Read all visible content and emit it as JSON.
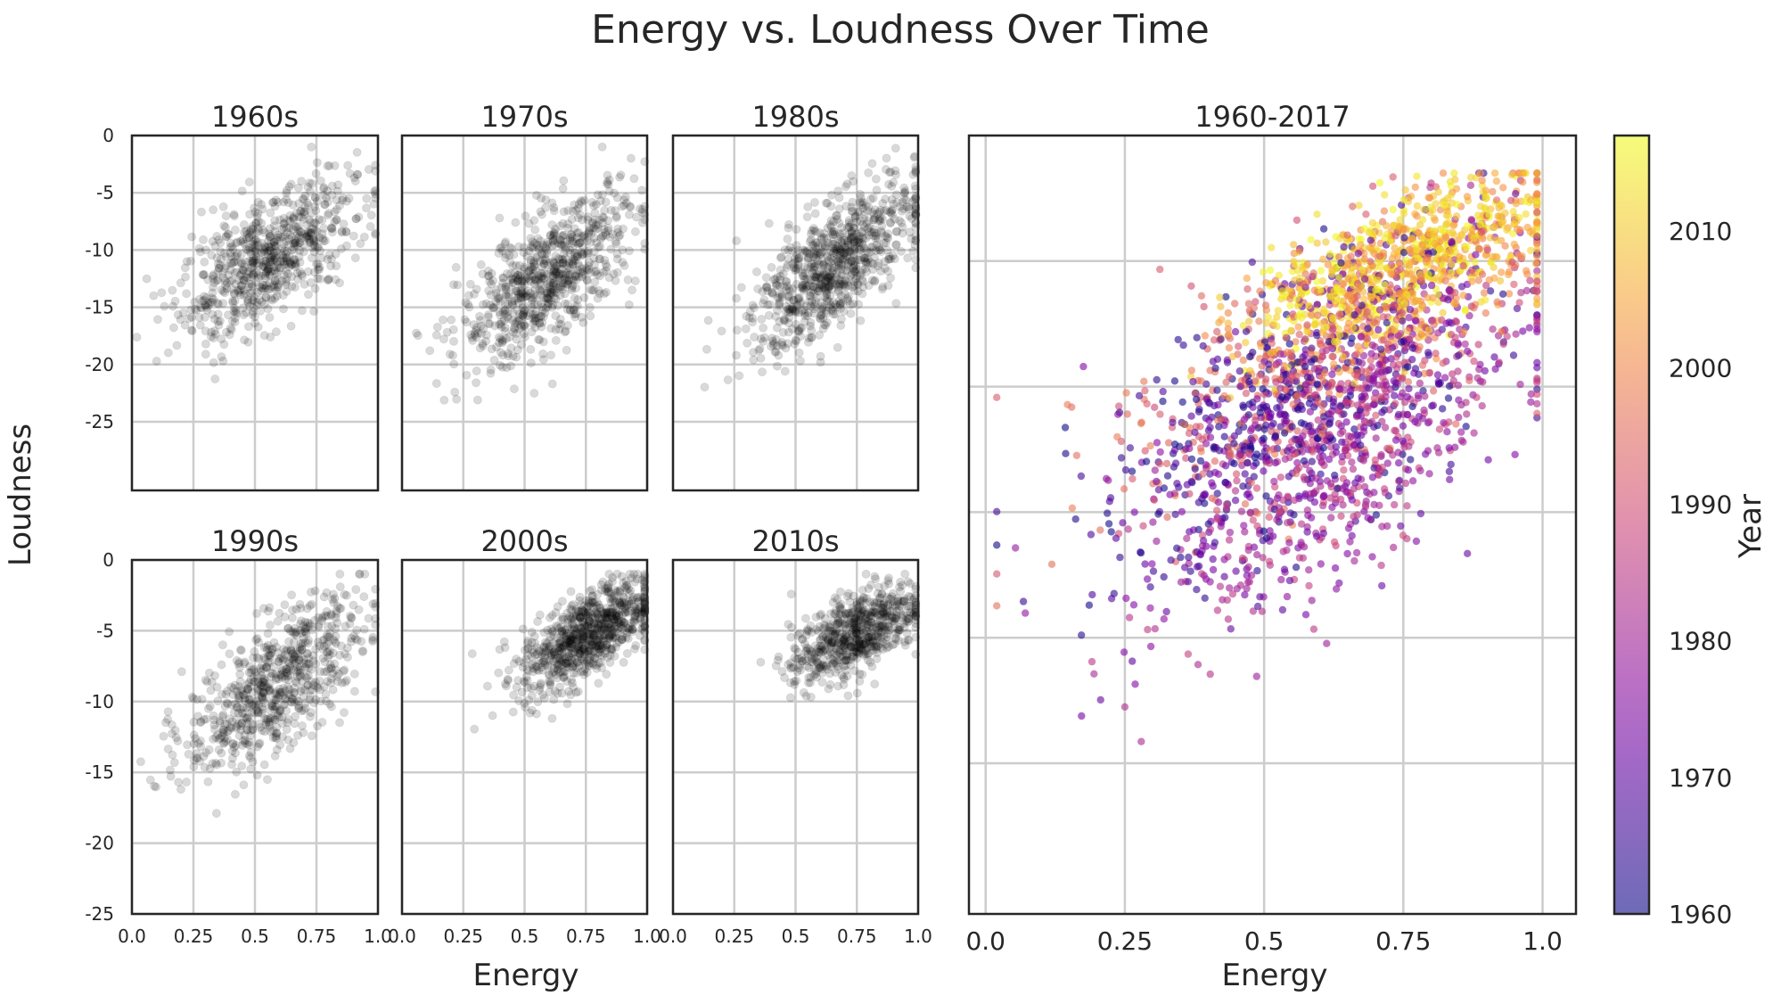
{
  "suptitle": "Energy vs. Loudness Over Time",
  "ylabel": "Loudness",
  "xlabel": "Energy",
  "colorbar": {
    "label": "Year",
    "ticks": [
      "1960",
      "1970",
      "1980",
      "1990",
      "2000",
      "2010"
    ],
    "range": [
      1960,
      2017
    ],
    "cmap": "plasma"
  },
  "chart_data": [
    {
      "type": "scatter",
      "title": "1960s",
      "xlim": [
        0,
        1
      ],
      "ylim": [
        -31,
        0
      ],
      "xticks": [],
      "yticks": [
        "0",
        "-5",
        "-10",
        "-15",
        "-20",
        "-25"
      ],
      "color": "#000000",
      "alpha": 0.15,
      "trend": {
        "intercept": -17.5,
        "slope": 12.0,
        "x_mean": 0.55,
        "x_sd": 0.18,
        "noise_sd": 2.6,
        "count": 700
      }
    },
    {
      "type": "scatter",
      "title": "1970s",
      "xlim": [
        0,
        1
      ],
      "ylim": [
        -31,
        0
      ],
      "xticks": [],
      "yticks": [],
      "color": "#000000",
      "alpha": 0.15,
      "trend": {
        "intercept": -20.5,
        "slope": 13.5,
        "x_mean": 0.6,
        "x_sd": 0.18,
        "noise_sd": 2.8,
        "count": 750
      }
    },
    {
      "type": "scatter",
      "title": "1980s",
      "xlim": [
        0,
        1
      ],
      "ylim": [
        -31,
        0
      ],
      "xticks": [],
      "yticks": [],
      "color": "#000000",
      "alpha": 0.15,
      "trend": {
        "intercept": -21.5,
        "slope": 15.5,
        "x_mean": 0.66,
        "x_sd": 0.17,
        "noise_sd": 2.6,
        "count": 800
      }
    },
    {
      "type": "scatter",
      "title": "1990s",
      "xlim": [
        0,
        1
      ],
      "ylim": [
        -25,
        0
      ],
      "xticks": [
        "0.0",
        "0.25",
        "0.5",
        "0.75",
        "1.0"
      ],
      "yticks": [
        "0",
        "-5",
        "-10",
        "-15",
        "-20",
        "-25"
      ],
      "color": "#000000",
      "alpha": 0.15,
      "trend": {
        "intercept": -15.5,
        "slope": 11.5,
        "x_mean": 0.58,
        "x_sd": 0.18,
        "noise_sd": 2.3,
        "count": 700
      }
    },
    {
      "type": "scatter",
      "title": "2000s",
      "xlim": [
        0,
        1
      ],
      "ylim": [
        -25,
        0
      ],
      "xticks": [
        "0.0",
        "0.25",
        "0.5",
        "0.75",
        "1.0"
      ],
      "yticks": [],
      "color": "#000000",
      "alpha": 0.15,
      "trend": {
        "intercept": -12.5,
        "slope": 9.5,
        "x_mean": 0.76,
        "x_sd": 0.14,
        "noise_sd": 1.5,
        "count": 800
      }
    },
    {
      "type": "scatter",
      "title": "2010s",
      "xlim": [
        0,
        1
      ],
      "ylim": [
        -25,
        0
      ],
      "xticks": [
        "0.0",
        "0.25",
        "0.5",
        "0.75",
        "1.0"
      ],
      "yticks": [],
      "color": "#000000",
      "alpha": 0.15,
      "trend": {
        "intercept": -11.5,
        "slope": 8.5,
        "x_mean": 0.74,
        "x_sd": 0.13,
        "noise_sd": 1.4,
        "count": 650
      }
    },
    {
      "type": "scatter",
      "title": "1960-2017",
      "xlim": [
        -0.03,
        1.06
      ],
      "ylim": [
        -31,
        0
      ],
      "xticks": [
        "0.0",
        "0.25",
        "0.5",
        "0.75",
        "1.0"
      ],
      "yticks": [],
      "color_by": "year",
      "alpha": 0.6,
      "count": 2600
    }
  ]
}
